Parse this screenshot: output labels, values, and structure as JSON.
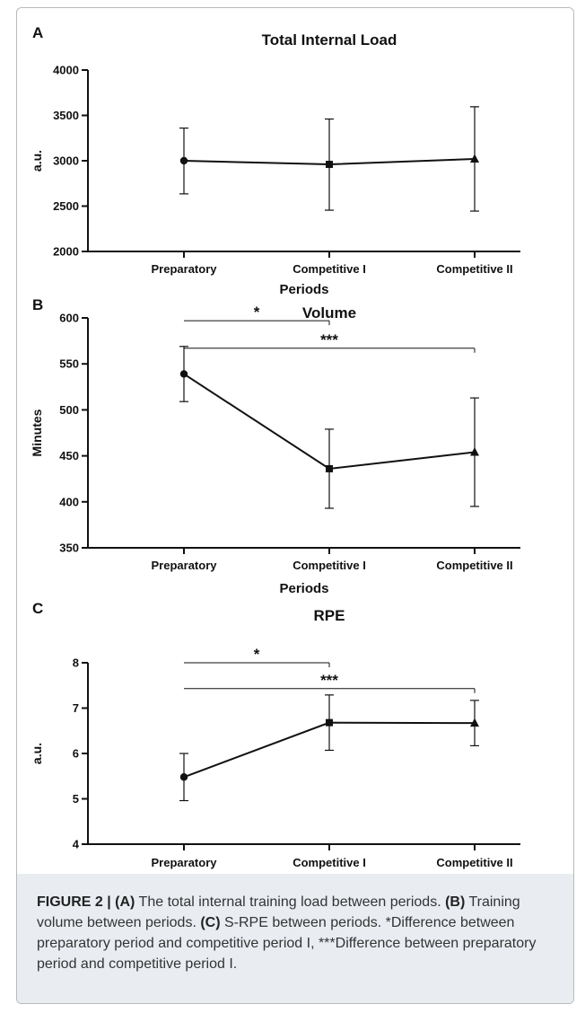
{
  "chart_data": [
    {
      "panel_label": "A",
      "type": "line",
      "title": "Total Internal Load",
      "xlabel": "Periods",
      "ylabel": "a.u.",
      "categories": [
        "Preparatory",
        "Competitive I",
        "Competitive II"
      ],
      "values": [
        3000,
        2960,
        3020
      ],
      "error_low": [
        2635,
        2455,
        2445
      ],
      "error_high": [
        3360,
        3460,
        3595
      ],
      "markers": [
        "circle",
        "square",
        "triangle"
      ],
      "ylim": [
        2000,
        4000
      ],
      "yticks": [
        2000,
        2500,
        3000,
        3500,
        4000
      ],
      "significance": []
    },
    {
      "panel_label": "B",
      "type": "line",
      "title": "Volume",
      "xlabel": "Periods",
      "ylabel": "Minutes",
      "categories": [
        "Preparatory",
        "Competitive I",
        "Competitive II"
      ],
      "values": [
        539,
        436,
        454
      ],
      "error_low": [
        509,
        393,
        395
      ],
      "error_high": [
        569,
        479,
        513
      ],
      "markers": [
        "circle",
        "square",
        "triangle"
      ],
      "ylim": [
        350,
        600
      ],
      "yticks": [
        350,
        400,
        450,
        500,
        550,
        600
      ],
      "significance": [
        {
          "from": 0,
          "to": 1,
          "label": "*",
          "y": 597
        },
        {
          "from": 0,
          "to": 2,
          "label": "***",
          "y": 567
        }
      ]
    },
    {
      "panel_label": "C",
      "type": "line",
      "title": "RPE",
      "xlabel": "Periods",
      "ylabel": "a.u.",
      "categories": [
        "Preparatory",
        "Competitive I",
        "Competitive II"
      ],
      "values": [
        5.48,
        6.68,
        6.67
      ],
      "error_low": [
        4.96,
        6.07,
        6.17
      ],
      "error_high": [
        6.0,
        7.29,
        7.17
      ],
      "markers": [
        "circle",
        "square",
        "triangle"
      ],
      "ylim": [
        4,
        8
      ],
      "yticks": [
        4,
        5,
        6,
        7,
        8
      ],
      "significance": [
        {
          "from": 0,
          "to": 1,
          "label": "*",
          "y": 8.0
        },
        {
          "from": 0,
          "to": 2,
          "label": "***",
          "y": 7.43
        }
      ]
    }
  ],
  "caption": {
    "figure_label": "FIGURE 2 |",
    "a_label": "(A)",
    "a_text": " The total internal training load between periods. ",
    "b_label": "(B)",
    "b_text": " Training volume between periods. ",
    "c_label": "(C)",
    "c_text": " S-RPE between periods. *Difference between preparatory period and competitive period I, ***Difference between preparatory period and competitive period I."
  }
}
